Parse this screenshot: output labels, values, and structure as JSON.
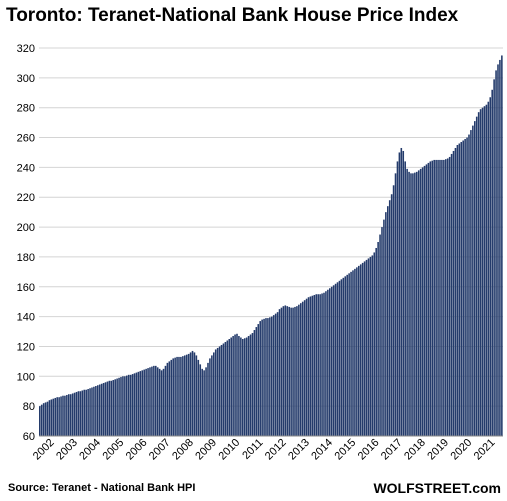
{
  "chart_data": {
    "type": "bar",
    "title": "Toronto:  Teranet-National  Bank House Price Index",
    "xlabel": "",
    "ylabel": "",
    "ylim": [
      60,
      320
    ],
    "yticks": [
      60,
      80,
      100,
      120,
      140,
      160,
      180,
      200,
      220,
      240,
      260,
      280,
      300,
      320
    ],
    "xtick_labels": [
      "2002",
      "2003",
      "2004",
      "2005",
      "2006",
      "2007",
      "2008",
      "2009",
      "2010",
      "2011",
      "2012",
      "2013",
      "2014",
      "2015",
      "2016",
      "2017",
      "2018",
      "2019",
      "2020",
      "2021"
    ],
    "grid": true,
    "bar_color": "#243b6b",
    "frequency": "monthly",
    "series": [
      {
        "values": {
          "2002": [
            80,
            81,
            82,
            82.5,
            83,
            84,
            84.5,
            85,
            85.5,
            86,
            86,
            86.5
          ],
          "2003": [
            87,
            87,
            87.5,
            88,
            88,
            88.5,
            89,
            89.5,
            90,
            90,
            90.5,
            91
          ],
          "2004": [
            91,
            91.5,
            92,
            92.5,
            93,
            93.5,
            94,
            94.5,
            95,
            95.5,
            96,
            96.5
          ],
          "2005": [
            97,
            97,
            97.5,
            98,
            98.5,
            99,
            99.5,
            100,
            100,
            100.5,
            101,
            101
          ],
          "2006": [
            101.5,
            102,
            102.5,
            103,
            103.5,
            104,
            104.5,
            105,
            105.5,
            106,
            106.5,
            107
          ],
          "2007": [
            107,
            106,
            105,
            104,
            105,
            107,
            109,
            110,
            111,
            112,
            112.5,
            113
          ],
          "2008": [
            113,
            113,
            113.5,
            114,
            114.5,
            115,
            116,
            117,
            116,
            114,
            111,
            108
          ],
          "2009": [
            105,
            104,
            106,
            109,
            112,
            114,
            116,
            118,
            119,
            120,
            121,
            122
          ],
          "2010": [
            123,
            124,
            125,
            126,
            127,
            128,
            128.5,
            127,
            126,
            125,
            125.5,
            126
          ],
          "2011": [
            127,
            128,
            129,
            131,
            133,
            135,
            137,
            138,
            138.5,
            139,
            139,
            139.5
          ],
          "2012": [
            140,
            141,
            142,
            143,
            145,
            146,
            147,
            147.5,
            147,
            146.5,
            146,
            146
          ],
          "2013": [
            146.5,
            147,
            148,
            149,
            150,
            151,
            152,
            153,
            153.5,
            154,
            154.5,
            155
          ],
          "2014": [
            155,
            155,
            155.5,
            156,
            157,
            158,
            159,
            160,
            161,
            162,
            163,
            164
          ],
          "2015": [
            165,
            166,
            167,
            168,
            169,
            170,
            171,
            172,
            173,
            174,
            175,
            176
          ],
          "2016": [
            177,
            178,
            179,
            180,
            181,
            183,
            186,
            190,
            195,
            200,
            205,
            210
          ],
          "2017": [
            214,
            218,
            222,
            228,
            236,
            244,
            250,
            253,
            251,
            244,
            239,
            237
          ],
          "2018": [
            236,
            236,
            236.5,
            237,
            238,
            239,
            240,
            241,
            242,
            243,
            244,
            244.5
          ],
          "2019": [
            245,
            245,
            245,
            245,
            245,
            245,
            245.5,
            246,
            247,
            249,
            251,
            253
          ],
          "2020": [
            255,
            256,
            257,
            258,
            259,
            260,
            262,
            265,
            268,
            271,
            274,
            277
          ],
          "2021": [
            279,
            280,
            281,
            282,
            284,
            287,
            292,
            299,
            305,
            309,
            312,
            315
          ]
        }
      }
    ]
  },
  "footer": {
    "source": "Source: Teranet - National Bank HPI",
    "brand": "WOLFSTREET.com"
  }
}
